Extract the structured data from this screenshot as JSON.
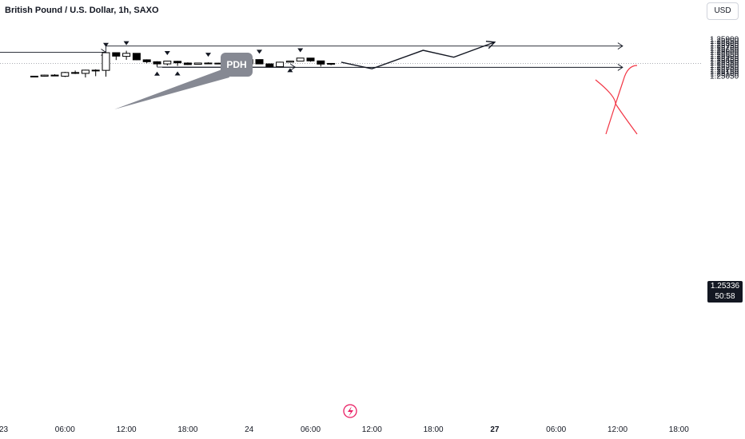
{
  "header": {
    "symbol_title": "British Pound / U.S. Dollar, 1h, SAXO",
    "currency_button": "USD"
  },
  "price_badge": {
    "price": "1.25336",
    "countdown": "50:58"
  },
  "annotation": {
    "pdh_label": "PDH"
  },
  "colors": {
    "candle_up": "#ffffff",
    "candle_down": "#000000",
    "candle_border": "#000000",
    "wick": "#000000",
    "red_x": "#f23645",
    "badge_bg": "#131722",
    "pdh_bg": "#868993"
  },
  "icons": {
    "flash_event": "lightning-icon"
  },
  "chart_data": {
    "type": "candlestick",
    "title": "British Pound / U.S. Dollar, 1h, SAXO",
    "ylim": [
      1.2503,
      1.2595
    ],
    "y_ticks": [
      "1.25900",
      "1.25850",
      "1.25800",
      "1.25750",
      "1.25700",
      "1.25650",
      "1.25600",
      "1.25550",
      "1.25500",
      "1.25450",
      "1.25400",
      "1.25350",
      "1.25300",
      "1.25250",
      "1.25200",
      "1.25150",
      "1.25100",
      "1.25050"
    ],
    "y_tick_values": [
      1.259,
      1.2585,
      1.258,
      1.2575,
      1.257,
      1.2565,
      1.256,
      1.2555,
      1.255,
      1.2545,
      1.254,
      1.2535,
      1.253,
      1.2525,
      1.252,
      1.2515,
      1.251,
      1.2505
    ],
    "x_ticks": [
      {
        "label": "23",
        "bold": false,
        "index": 0
      },
      {
        "label": "06:00",
        "bold": false,
        "index": 6
      },
      {
        "label": "12:00",
        "bold": false,
        "index": 12
      },
      {
        "label": "18:00",
        "bold": false,
        "index": 18
      },
      {
        "label": "24",
        "bold": false,
        "index": 24
      },
      {
        "label": "06:00",
        "bold": false,
        "index": 30
      },
      {
        "label": "12:00",
        "bold": false,
        "index": 36
      },
      {
        "label": "18:00",
        "bold": false,
        "index": 42
      },
      {
        "label": "27",
        "bold": true,
        "index": 48
      },
      {
        "label": "06:00",
        "bold": false,
        "index": 54
      },
      {
        "label": "12:00",
        "bold": false,
        "index": 60
      },
      {
        "label": "18:00",
        "bold": false,
        "index": 66
      }
    ],
    "candles": [
      {
        "i": 3,
        "o": 1.2503,
        "h": 1.25045,
        "l": 1.2502,
        "c": 1.2504
      },
      {
        "i": 4,
        "o": 1.2504,
        "h": 1.25075,
        "l": 1.2503,
        "c": 1.25065
      },
      {
        "i": 5,
        "o": 1.25065,
        "h": 1.25085,
        "l": 1.2505,
        "c": 1.25045
      },
      {
        "i": 6,
        "o": 1.2504,
        "h": 1.2514,
        "l": 1.2502,
        "c": 1.25125
      },
      {
        "i": 7,
        "o": 1.25125,
        "h": 1.2517,
        "l": 1.2509,
        "c": 1.25105
      },
      {
        "i": 8,
        "o": 1.25105,
        "h": 1.2519,
        "l": 1.2501,
        "c": 1.2518
      },
      {
        "i": 9,
        "o": 1.25175,
        "h": 1.252,
        "l": 1.2504,
        "c": 1.2518
      },
      {
        "i": 10,
        "o": 1.25175,
        "h": 1.2559,
        "l": 1.2503,
        "c": 1.25585
      },
      {
        "i": 11,
        "o": 1.25585,
        "h": 1.2559,
        "l": 1.25415,
        "c": 1.25505
      },
      {
        "i": 12,
        "o": 1.255,
        "h": 1.2563,
        "l": 1.2542,
        "c": 1.2557
      },
      {
        "i": 13,
        "o": 1.2557,
        "h": 1.2557,
        "l": 1.2541,
        "c": 1.2542
      },
      {
        "i": 14,
        "o": 1.2542,
        "h": 1.2543,
        "l": 1.2534,
        "c": 1.25375
      },
      {
        "i": 15,
        "o": 1.25375,
        "h": 1.25385,
        "l": 1.25275,
        "c": 1.25325
      },
      {
        "i": 16,
        "o": 1.25325,
        "h": 1.254,
        "l": 1.2529,
        "c": 1.2539
      },
      {
        "i": 17,
        "o": 1.25385,
        "h": 1.25395,
        "l": 1.2528,
        "c": 1.2535
      },
      {
        "i": 18,
        "o": 1.25345,
        "h": 1.2536,
        "l": 1.253,
        "c": 1.2531
      },
      {
        "i": 19,
        "o": 1.25315,
        "h": 1.2535,
        "l": 1.2531,
        "c": 1.25345
      },
      {
        "i": 20,
        "o": 1.25345,
        "h": 1.2536,
        "l": 1.25335,
        "c": 1.25342
      },
      {
        "i": 21,
        "o": 1.25342,
        "h": 1.2535,
        "l": 1.25335,
        "c": 1.2534
      },
      {
        "i": 22,
        "o": 1.2534,
        "h": 1.25355,
        "l": 1.2533,
        "c": 1.25335
      },
      {
        "i": 23,
        "o": 1.25345,
        "h": 1.2537,
        "l": 1.2532,
        "c": 1.25325
      },
      {
        "i": 24,
        "o": 1.25325,
        "h": 1.25435,
        "l": 1.2532,
        "c": 1.25425
      },
      {
        "i": 25,
        "o": 1.25425,
        "h": 1.2543,
        "l": 1.2532,
        "c": 1.25325
      },
      {
        "i": 26,
        "o": 1.25325,
        "h": 1.2533,
        "l": 1.25245,
        "c": 1.2526
      },
      {
        "i": 27,
        "o": 1.2526,
        "h": 1.25375,
        "l": 1.25245,
        "c": 1.25365
      },
      {
        "i": 28,
        "o": 1.25365,
        "h": 1.254,
        "l": 1.25355,
        "c": 1.2539
      },
      {
        "i": 29,
        "o": 1.2539,
        "h": 1.25465,
        "l": 1.25385,
        "c": 1.2546
      },
      {
        "i": 30,
        "o": 1.2546,
        "h": 1.25465,
        "l": 1.25375,
        "c": 1.25395
      },
      {
        "i": 31,
        "o": 1.25395,
        "h": 1.25395,
        "l": 1.25265,
        "c": 1.2532
      },
      {
        "i": 32,
        "o": 1.2532,
        "h": 1.25345,
        "l": 1.25295,
        "c": 1.25336
      }
    ],
    "markers_down": [
      10,
      12,
      16,
      20,
      22,
      25,
      29
    ],
    "markers_up": [
      15,
      17,
      23,
      28
    ],
    "horizontal_lines": [
      {
        "price": 1.2574,
        "from": 10,
        "to": 60.5
      },
      {
        "price": 1.25595,
        "from": -1,
        "to": 10
      },
      {
        "price": 1.2525,
        "from": 15,
        "to": 28.5
      },
      {
        "price": 1.25245,
        "from": 15.5,
        "to": 60.5
      }
    ],
    "projection_path": [
      {
        "i": 33,
        "p": 1.25365
      },
      {
        "i": 36,
        "p": 1.25212
      },
      {
        "i": 41,
        "p": 1.2564
      },
      {
        "i": 44,
        "p": 1.2548
      },
      {
        "i": 48,
        "p": 1.2583
      }
    ],
    "current_price": 1.25336
  }
}
